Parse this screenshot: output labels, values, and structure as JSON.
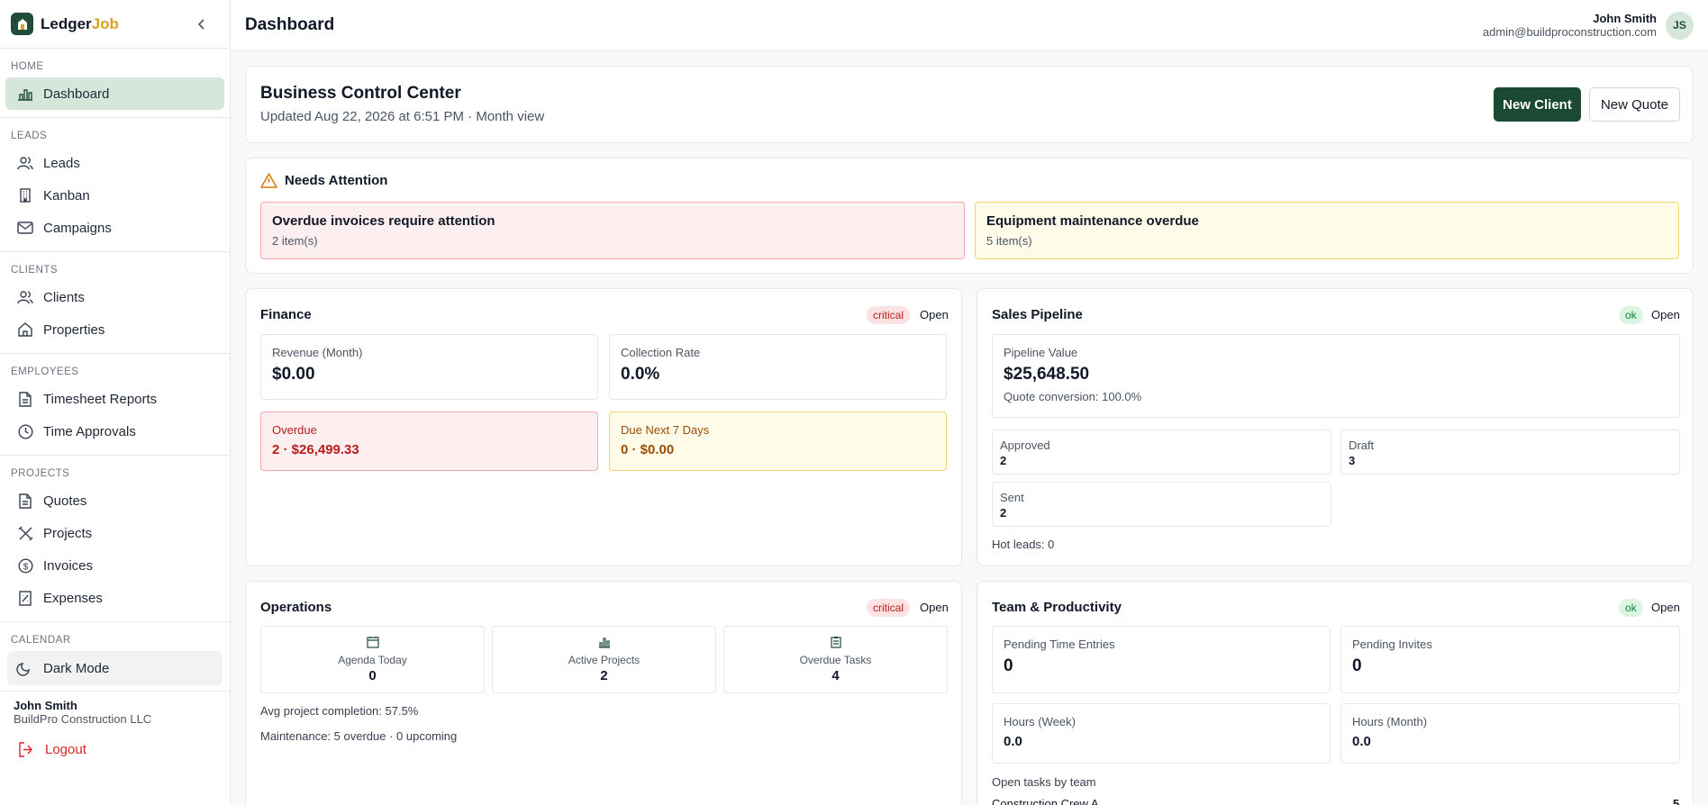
{
  "brand": {
    "name_main": "Ledger",
    "name_accent": "Job"
  },
  "sidebar": {
    "sections": [
      {
        "label": "HOME",
        "items": [
          {
            "label": "Dashboard",
            "icon": "bar-chart-icon"
          }
        ]
      },
      {
        "label": "LEADS",
        "items": [
          {
            "label": "Leads",
            "icon": "users-icon"
          },
          {
            "label": "Kanban",
            "icon": "building-icon"
          },
          {
            "label": "Campaigns",
            "icon": "mail-icon"
          }
        ]
      },
      {
        "label": "CLIENTS",
        "items": [
          {
            "label": "Clients",
            "icon": "users-icon"
          },
          {
            "label": "Properties",
            "icon": "home-icon"
          }
        ]
      },
      {
        "label": "EMPLOYEES",
        "items": [
          {
            "label": "Timesheet Reports",
            "icon": "file-icon"
          },
          {
            "label": "Time Approvals",
            "icon": "clock-icon"
          }
        ]
      },
      {
        "label": "PROJECTS",
        "items": [
          {
            "label": "Quotes",
            "icon": "file-icon"
          },
          {
            "label": "Projects",
            "icon": "tools-icon"
          },
          {
            "label": "Invoices",
            "icon": "dollar-circle-icon"
          },
          {
            "label": "Expenses",
            "icon": "receipt-icon"
          }
        ]
      },
      {
        "label": "CALENDAR"
      }
    ],
    "dark_mode_label": "Dark Mode",
    "user_name": "John Smith",
    "company": "BuildPro Construction LLC",
    "logout_label": "Logout"
  },
  "header": {
    "title": "Dashboard",
    "user_name": "John Smith",
    "user_email": "admin@buildproconstruction.com",
    "avatar_initials": "JS"
  },
  "control": {
    "title": "Business Control Center",
    "subtitle": "Updated Aug 22, 2026 at 6:51 PM · Month view",
    "new_client": "New Client",
    "new_quote": "New Quote"
  },
  "attention": {
    "title": "Needs Attention",
    "alerts": [
      {
        "title": "Overdue invoices require attention",
        "count": "2 item(s)"
      },
      {
        "title": "Equipment maintenance overdue",
        "count": "5 item(s)"
      }
    ]
  },
  "finance": {
    "title": "Finance",
    "status": "critical",
    "open": "Open",
    "revenue_label": "Revenue (Month)",
    "revenue_value": "$0.00",
    "collection_label": "Collection Rate",
    "collection_value": "0.0%",
    "overdue_label": "Overdue",
    "overdue_value": "2 · $26,499.33",
    "due_label": "Due Next 7 Days",
    "due_value": "0 · $0.00"
  },
  "sales": {
    "title": "Sales Pipeline",
    "status": "ok",
    "open": "Open",
    "pipeline_label": "Pipeline Value",
    "pipeline_value": "$25,648.50",
    "conversion": "Quote conversion: 100.0%",
    "approved_label": "Approved",
    "approved_value": "2",
    "draft_label": "Draft",
    "draft_value": "3",
    "sent_label": "Sent",
    "sent_value": "2",
    "hot_leads": "Hot leads: 0"
  },
  "operations": {
    "title": "Operations",
    "status": "critical",
    "open": "Open",
    "tiles": [
      {
        "label": "Agenda Today",
        "value": "0",
        "icon": "calendar-icon"
      },
      {
        "label": "Active Projects",
        "value": "2",
        "icon": "bar-chart-icon"
      },
      {
        "label": "Overdue Tasks",
        "value": "4",
        "icon": "clipboard-icon"
      }
    ],
    "avg_completion": "Avg project completion: 57.5%",
    "maintenance": "Maintenance: 5 overdue · 0 upcoming"
  },
  "team": {
    "title": "Team & Productivity",
    "status": "ok",
    "open": "Open",
    "pending_time_label": "Pending Time Entries",
    "pending_time_value": "0",
    "pending_invites_label": "Pending Invites",
    "pending_invites_value": "0",
    "hours_week_label": "Hours (Week)",
    "hours_week_value": "0.0",
    "hours_month_label": "Hours (Month)",
    "hours_month_value": "0.0",
    "open_tasks_label": "Open tasks by team",
    "crew_name": "Construction Crew A",
    "crew_value": "5"
  },
  "colors": {
    "brand": "#1a4a34",
    "accent": "#d9a11f",
    "critical": "#b91c1c",
    "ok": "#15803d"
  }
}
